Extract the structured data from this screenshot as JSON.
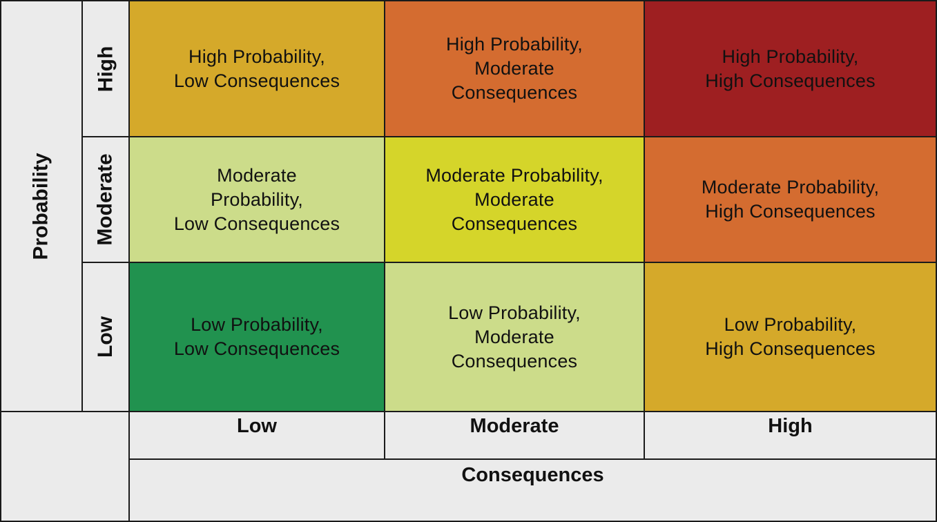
{
  "y_axis": {
    "title": "Probability",
    "levels": [
      "High",
      "Moderate",
      "Low"
    ]
  },
  "x_axis": {
    "title": "Consequences",
    "levels": [
      "Low",
      "Moderate",
      "High"
    ]
  },
  "colors": {
    "dark_green": "#21924f",
    "light_green": "#ccdc8a",
    "yellow": "#d5d52a",
    "amber": "#d5a92a",
    "orange": "#d46c30",
    "dark_red": "#9e1f21",
    "axis_background": "#ebebeb",
    "border": "#1a1a1a"
  },
  "matrix": {
    "high_low": {
      "lines": [
        "High Probability,",
        "Low Consequences"
      ],
      "color": "#d5a92a"
    },
    "high_moderate": {
      "lines": [
        "High Probability,",
        "Moderate",
        "Consequences"
      ],
      "color": "#d46c30"
    },
    "high_high": {
      "lines": [
        "High Probability,",
        "High Consequences"
      ],
      "color": "#9e1f21"
    },
    "moderate_low": {
      "lines": [
        "Moderate",
        "Probability,",
        "Low Consequences"
      ],
      "color": "#ccdc8a"
    },
    "moderate_moderate": {
      "lines": [
        "Moderate Probability,",
        "Moderate",
        "Consequences"
      ],
      "color": "#d5d52a"
    },
    "moderate_high": {
      "lines": [
        "Moderate Probability,",
        "High Consequences"
      ],
      "color": "#d46c30"
    },
    "low_low": {
      "lines": [
        "Low Probability,",
        "Low Consequences"
      ],
      "color": "#21924f"
    },
    "low_moderate": {
      "lines": [
        "Low Probability,",
        "Moderate",
        "Consequences"
      ],
      "color": "#ccdc8a"
    },
    "low_high": {
      "lines": [
        "Low Probability,",
        "High Consequences"
      ],
      "color": "#d5a92a"
    }
  }
}
